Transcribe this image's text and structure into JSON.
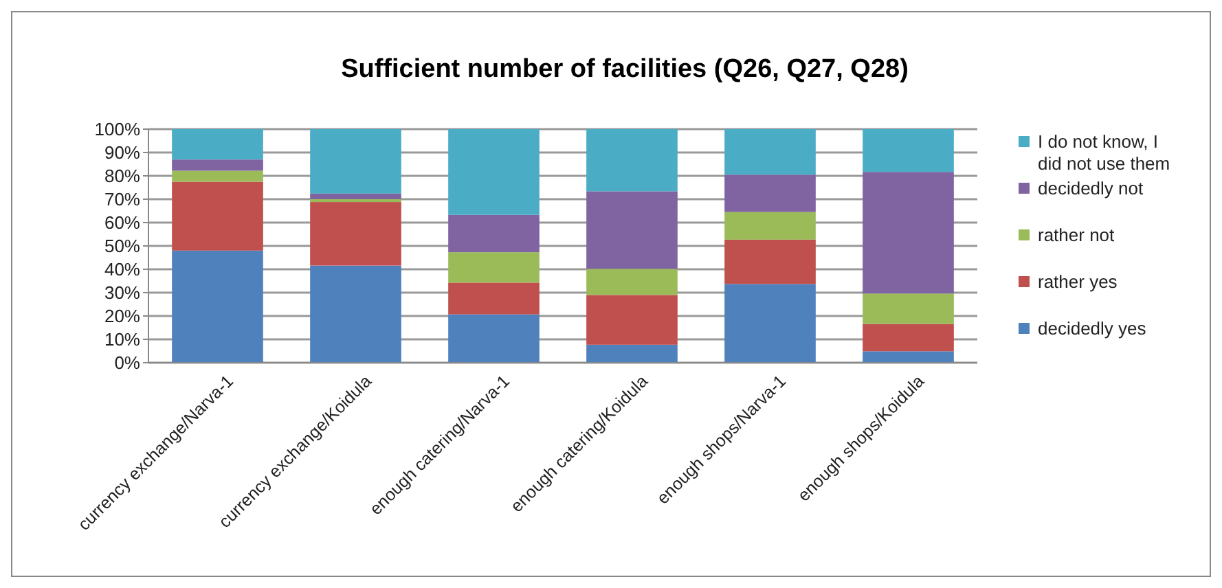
{
  "chart_data": {
    "type": "bar",
    "title": "Sufficient number of facilities (Q26, Q27, Q28)",
    "categories": [
      "currency exchange/Narva-1",
      "currency exchange/Koidula",
      "enough catering/Narva-1",
      "enough catering/Koidula",
      "enough shops/Narva-1",
      "enough shops/Koidula"
    ],
    "stacked": true,
    "series": [
      {
        "name": "decidedly yes",
        "color": "#4f81bd",
        "values": [
          48,
          41.6,
          20.7,
          7.7,
          33.7,
          4.9
        ]
      },
      {
        "name": "rather yes",
        "color": "#c0504d",
        "values": [
          29.5,
          27.2,
          13.6,
          21.3,
          19,
          11.7
        ]
      },
      {
        "name": "rather not",
        "color": "#9bbb59",
        "values": [
          4.7,
          1.2,
          13,
          11.2,
          11.8,
          13
        ]
      },
      {
        "name": "decidedly not",
        "color": "#8064a2",
        "values": [
          4.8,
          2.4,
          16,
          33.2,
          16,
          52.1
        ]
      },
      {
        "name": "I do not know, I did not use them",
        "color": "#4bacc6",
        "values": [
          13,
          27.6,
          36.7,
          26.6,
          19.5,
          18.3
        ]
      }
    ],
    "ylim": [
      0,
      100
    ],
    "yticks": [
      {
        "value": 0,
        "label": "0%"
      },
      {
        "value": 10,
        "label": "10%"
      },
      {
        "value": 20,
        "label": "20%"
      },
      {
        "value": 30,
        "label": "30%"
      },
      {
        "value": 40,
        "label": "40%"
      },
      {
        "value": 50,
        "label": "50%"
      },
      {
        "value": 60,
        "label": "60%"
      },
      {
        "value": 70,
        "label": "70%"
      },
      {
        "value": 80,
        "label": "80%"
      },
      {
        "value": 90,
        "label": "90%"
      },
      {
        "value": 100,
        "label": "100%"
      }
    ],
    "grid": "y",
    "legend": "right"
  }
}
